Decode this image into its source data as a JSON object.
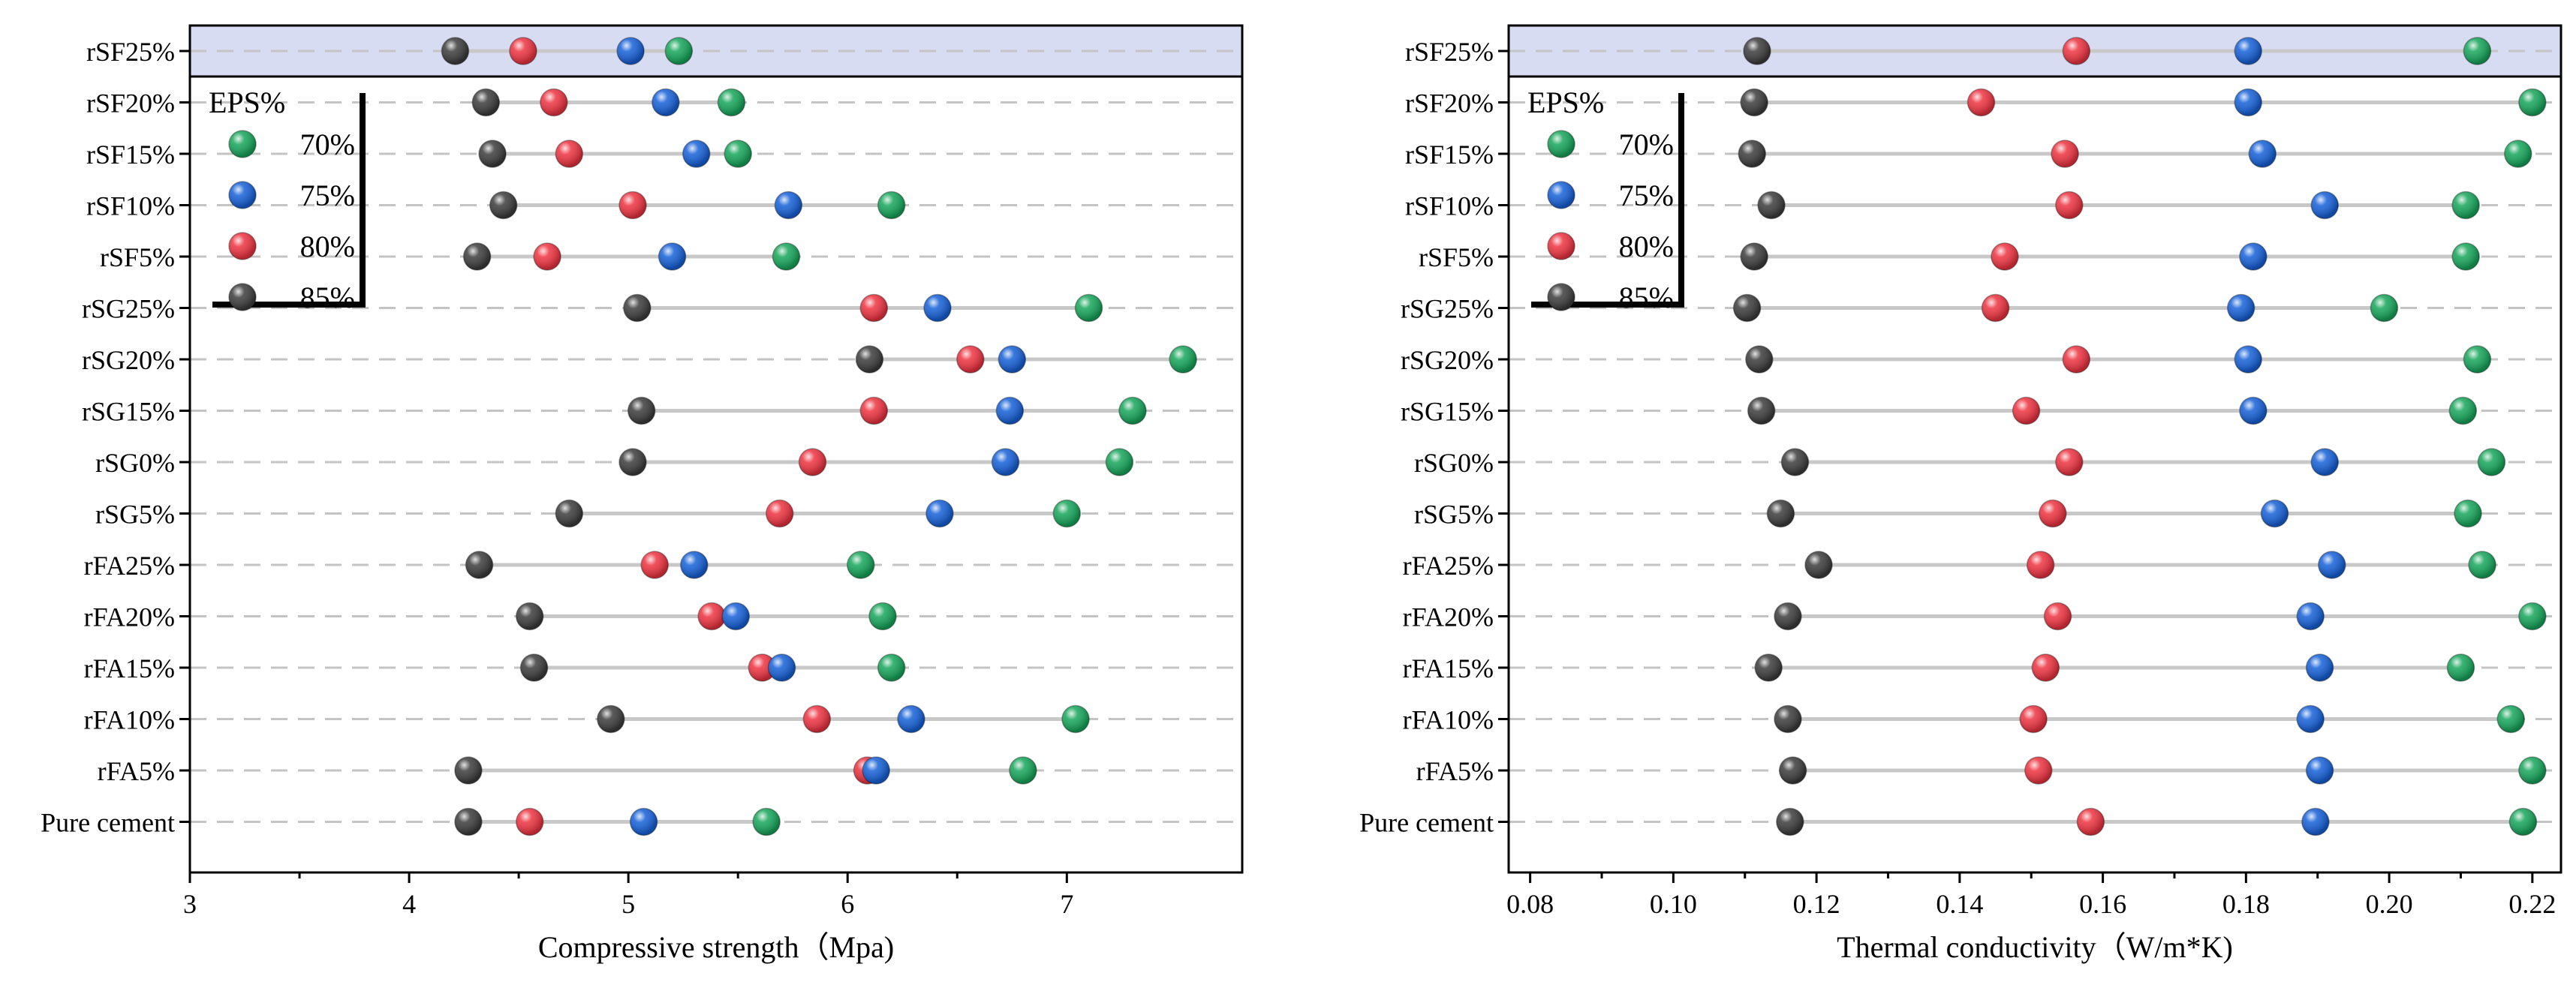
{
  "chart_data": [
    {
      "type": "dot",
      "xlabel": "Compressive strength（Mpa)",
      "xlim": [
        3,
        7.8
      ],
      "xticks": [
        "3",
        "4",
        "5",
        "6",
        "7"
      ],
      "highlighted_row": "rSF25%",
      "legend": {
        "title": "EPS%",
        "placement": "top-left",
        "entries": [
          "70%",
          "75%",
          "80%",
          "85%"
        ]
      },
      "categories": [
        "Pure cement",
        "rFA5%",
        "rFA10%",
        "rFA15%",
        "rFA20%",
        "rFA25%",
        "rSG5%",
        "rSG0%",
        "rSG15%",
        "rSG20%",
        "rSG25%",
        "rSF5%",
        "rSF10%",
        "rSF15%",
        "rSF20%",
        "rSF25%"
      ],
      "series": [
        {
          "name": "70%",
          "color": "#16a65a",
          "values": [
            5.63,
            6.8,
            7.04,
            6.2,
            6.16,
            6.06,
            7.0,
            7.24,
            7.3,
            7.53,
            7.1,
            5.72,
            6.2,
            5.5,
            5.47,
            5.23
          ]
        },
        {
          "name": "75%",
          "color": "#1560d8",
          "values": [
            5.07,
            6.13,
            6.29,
            5.7,
            5.49,
            5.3,
            6.42,
            6.72,
            6.74,
            6.75,
            6.41,
            5.2,
            5.73,
            5.31,
            5.17,
            5.01
          ]
        },
        {
          "name": "80%",
          "color": "#ee3340",
          "values": [
            4.55,
            6.09,
            5.86,
            5.61,
            5.38,
            5.12,
            5.69,
            5.84,
            6.12,
            6.56,
            6.12,
            4.63,
            5.02,
            4.73,
            4.66,
            4.52
          ]
        },
        {
          "name": "85%",
          "color": "#3c3c3c",
          "values": [
            4.27,
            4.27,
            4.92,
            4.57,
            4.55,
            4.32,
            4.73,
            5.02,
            5.06,
            6.1,
            5.04,
            4.31,
            4.43,
            4.38,
            4.35,
            4.21
          ]
        }
      ]
    },
    {
      "type": "dot",
      "xlabel": "Thermal conductivity（W/m*K)",
      "xlim": [
        0.077,
        0.224
      ],
      "xticks": [
        "0.08",
        "0.10",
        "0.12",
        "0.14",
        "0.16",
        "0.18",
        "0.20",
        "0.22"
      ],
      "highlighted_row": "rSF25%",
      "legend": {
        "title": "EPS%",
        "placement": "top-left",
        "entries": [
          "70%",
          "75%",
          "80%",
          "85%"
        ]
      },
      "categories": [
        "Pure cement",
        "rFA5%",
        "rFA10%",
        "rFA15%",
        "rFA20%",
        "rFA25%",
        "rSG5%",
        "rSG0%",
        "rSG15%",
        "rSG20%",
        "rSG25%",
        "rSF5%",
        "rSF10%",
        "rSF15%",
        "rSF20%",
        "rSF25%"
      ],
      "series": [
        {
          "name": "70%",
          "color": "#16a65a",
          "values": [
            0.2187,
            0.22,
            0.217,
            0.21,
            0.22,
            0.213,
            0.211,
            0.2143,
            0.2103,
            0.2123,
            0.1993,
            0.2107,
            0.2107,
            0.218,
            0.22,
            0.2123
          ]
        },
        {
          "name": "75%",
          "color": "#1560d8",
          "values": [
            0.1897,
            0.1903,
            0.189,
            0.1903,
            0.189,
            0.192,
            0.184,
            0.191,
            0.181,
            0.1803,
            0.1793,
            0.181,
            0.191,
            0.1823,
            0.1803,
            0.1803
          ]
        },
        {
          "name": "80%",
          "color": "#ee3340",
          "values": [
            0.1583,
            0.151,
            0.1503,
            0.152,
            0.1537,
            0.1513,
            0.153,
            0.1553,
            0.1493,
            0.1563,
            0.145,
            0.1463,
            0.1553,
            0.1547,
            0.143,
            0.1563
          ]
        },
        {
          "name": "85%",
          "color": "#3c3c3c",
          "values": [
            0.1163,
            0.1167,
            0.116,
            0.1133,
            0.116,
            0.1203,
            0.115,
            0.117,
            0.1123,
            0.112,
            0.1103,
            0.1113,
            0.1137,
            0.111,
            0.1113,
            0.1117
          ]
        }
      ]
    }
  ]
}
